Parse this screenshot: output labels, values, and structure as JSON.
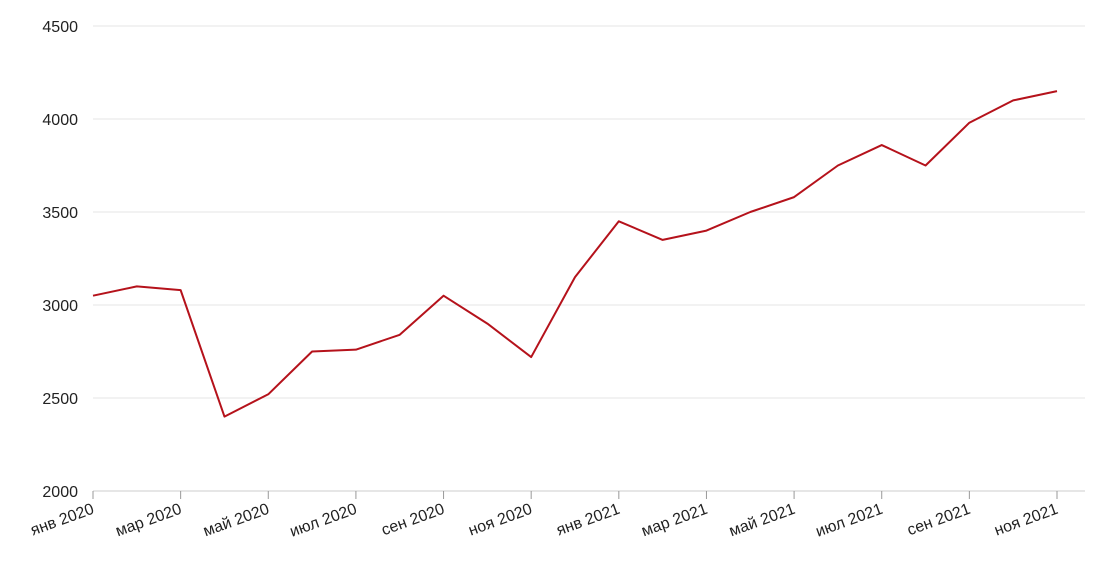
{
  "chart_data": {
    "type": "line",
    "x": [
      "2020-01",
      "2020-02",
      "2020-03",
      "2020-04",
      "2020-05",
      "2020-06",
      "2020-07",
      "2020-08",
      "2020-09",
      "2020-10",
      "2020-11",
      "2020-12",
      "2021-01",
      "2021-02",
      "2021-03",
      "2021-04",
      "2021-05",
      "2021-06",
      "2021-07",
      "2021-08",
      "2021-09",
      "2021-10",
      "2021-11"
    ],
    "series": [
      {
        "color": "#b5121b",
        "values": [
          3050,
          3100,
          3080,
          2400,
          2520,
          2750,
          2760,
          2840,
          3050,
          2900,
          2720,
          3150,
          3450,
          3350,
          3400,
          3500,
          3580,
          3750,
          3860,
          3750,
          3980,
          4100,
          4150
        ]
      }
    ],
    "xlim": [
      "2020-01",
      "2021-11"
    ],
    "xticks": [
      {
        "value": "2020-01",
        "label": "янв 2020"
      },
      {
        "value": "2020-03",
        "label": "мар 2020"
      },
      {
        "value": "2020-05",
        "label": "май 2020"
      },
      {
        "value": "2020-07",
        "label": "июл 2020"
      },
      {
        "value": "2020-09",
        "label": "сен 2020"
      },
      {
        "value": "2020-11",
        "label": "ноя 2020"
      },
      {
        "value": "2021-01",
        "label": "янв 2021"
      },
      {
        "value": "2021-03",
        "label": "мар 2021"
      },
      {
        "value": "2021-05",
        "label": "май 2021"
      },
      {
        "value": "2021-07",
        "label": "июл 2021"
      },
      {
        "value": "2021-09",
        "label": "сен 2021"
      },
      {
        "value": "2021-11",
        "label": "ноя 2021"
      }
    ],
    "ylim": [
      2000,
      4500
    ],
    "yticks": [
      2000,
      2500,
      3000,
      3500,
      4000,
      4500
    ],
    "grid": true
  }
}
